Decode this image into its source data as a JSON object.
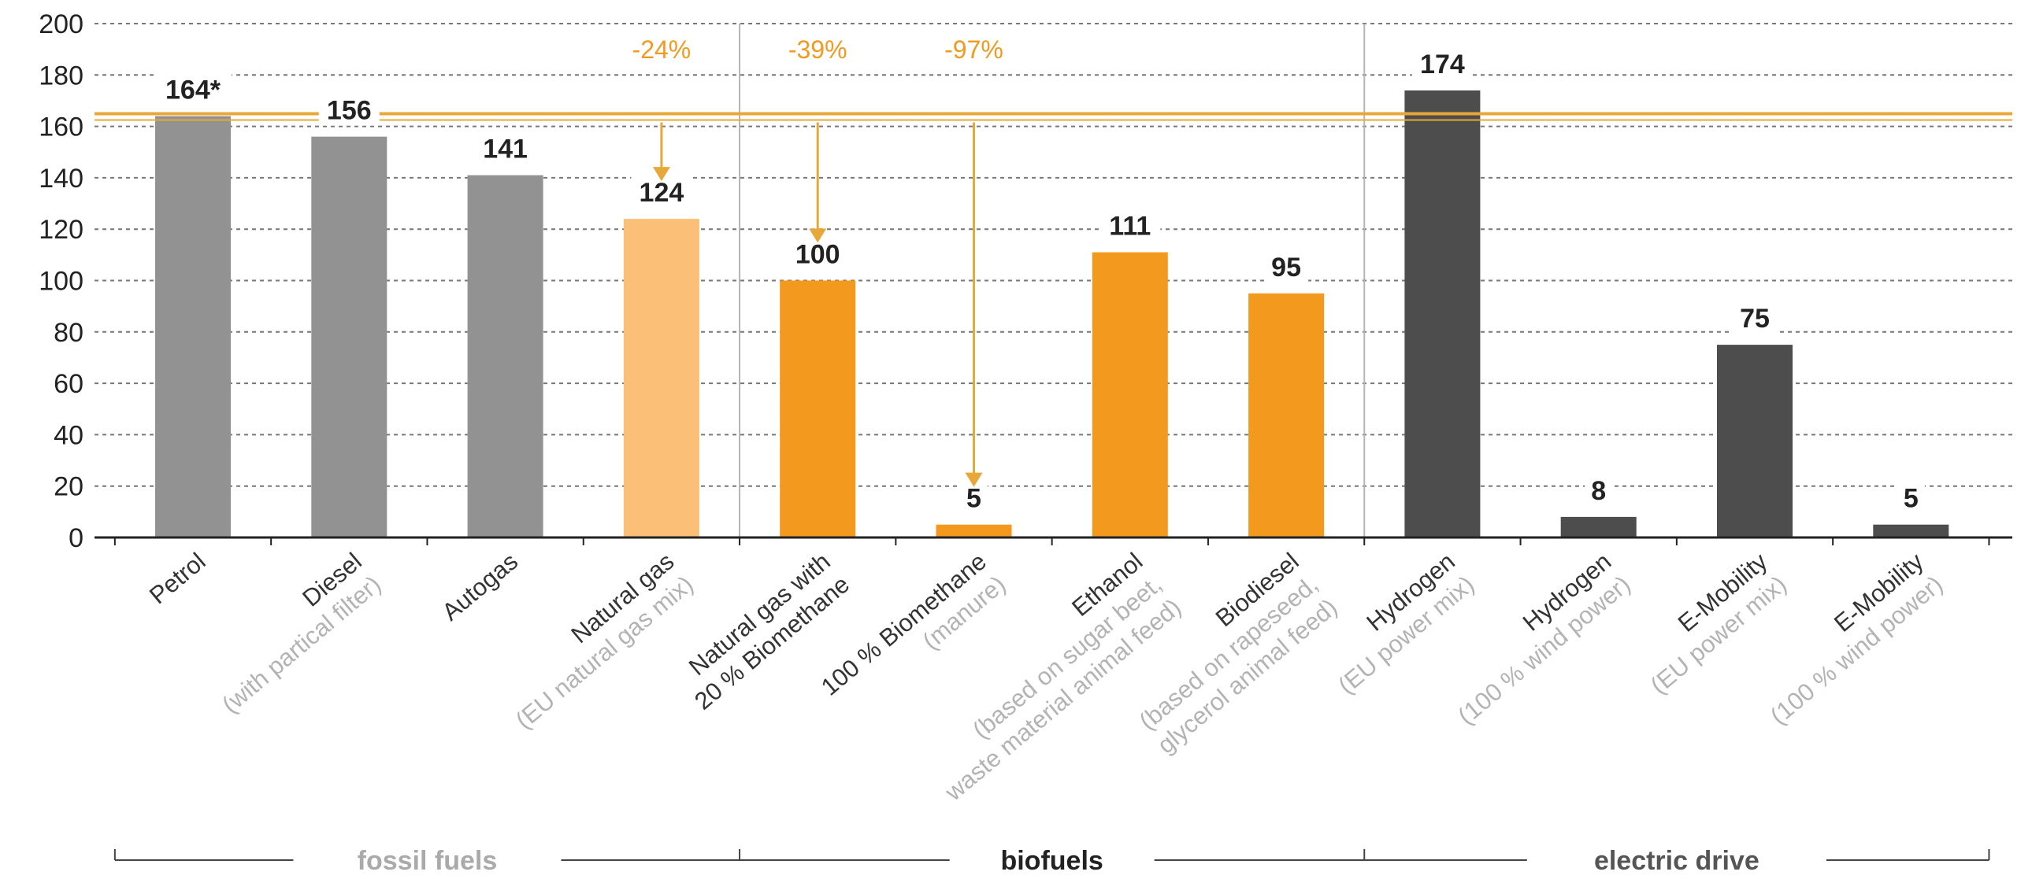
{
  "chart_data": {
    "type": "bar",
    "ylim": [
      0,
      200
    ],
    "yticks": [
      "0",
      "20",
      "40",
      "60",
      "80",
      "100",
      "120",
      "140",
      "160",
      "180",
      "200"
    ],
    "grid": true,
    "categories": [
      {
        "main": [
          "Petrol"
        ],
        "sub": []
      },
      {
        "main": [
          "Diesel"
        ],
        "sub": [
          "(with partical filter)"
        ]
      },
      {
        "main": [
          "Autogas"
        ],
        "sub": []
      },
      {
        "main": [
          "Natural gas"
        ],
        "sub": [
          "(EU natural gas mix)"
        ]
      },
      {
        "main": [
          "Natural gas with",
          "20 % Biomethane"
        ],
        "sub": []
      },
      {
        "main": [
          "100 % Biomethane"
        ],
        "sub": [
          "(manure)"
        ]
      },
      {
        "main": [
          "Ethanol"
        ],
        "sub": [
          "(based on sugar beet,",
          "waste material animal feed)"
        ]
      },
      {
        "main": [
          "Biodiesel"
        ],
        "sub": [
          "(based on rapeseed,",
          "glycerol animal feed)"
        ]
      },
      {
        "main": [
          "Hydrogen"
        ],
        "sub": [
          "(EU power mix)"
        ]
      },
      {
        "main": [
          "Hydrogen"
        ],
        "sub": [
          "(100 % wind power)"
        ]
      },
      {
        "main": [
          "E-Mobility"
        ],
        "sub": [
          "(EU power mix)"
        ]
      },
      {
        "main": [
          "E-Mobility"
        ],
        "sub": [
          "(100 % wind power)"
        ]
      }
    ],
    "values": [
      164,
      156,
      141,
      124,
      100,
      5,
      111,
      95,
      174,
      8,
      75,
      5
    ],
    "value_labels": [
      "164*",
      "156",
      "141",
      "124",
      "100",
      "5",
      "111",
      "95",
      "174",
      "8",
      "75",
      "5"
    ],
    "bar_colors": [
      "#929292",
      "#929292",
      "#929292",
      "#fbbf78",
      "#f39a1e",
      "#f39a1e",
      "#f39a1e",
      "#f39a1e",
      "#4d4d4d",
      "#4d4d4d",
      "#4d4d4d",
      "#4d4d4d"
    ],
    "reference_line": {
      "value": 164,
      "color": "#e8a838"
    },
    "reductions": [
      {
        "label": "-24%",
        "category_index": 3
      },
      {
        "label": "-39%",
        "category_index": 4
      },
      {
        "label": "-97%",
        "category_index": 5
      }
    ],
    "groups": [
      {
        "name": "fossil fuels",
        "from": 0,
        "to": 3,
        "color": "#aaaaaa"
      },
      {
        "name": "biofuels",
        "from": 4,
        "to": 7,
        "color": "#222222"
      },
      {
        "name": "electric drive",
        "from": 8,
        "to": 11,
        "color": "#555555"
      }
    ]
  }
}
